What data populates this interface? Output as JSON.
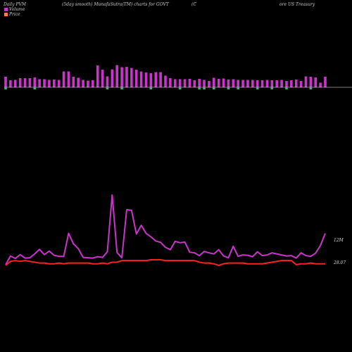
{
  "header": {
    "left": "Daily PVM",
    "mid": "(5day smooth) MunafaSutra(TM) charts for GOVT",
    "right_a": "(C",
    "right_b": "ore  US Treasury"
  },
  "legend": {
    "volume_label": "Volume",
    "price_label": "Price"
  },
  "colors": {
    "background": "#000000",
    "volume_bar": "#cc33cc",
    "volume_line": "#cc33cc",
    "price_line": "#ff2020",
    "baseline": "#ffffff",
    "down_marker": "#3cb371"
  },
  "chart_data": {
    "type": "line",
    "series": [
      {
        "name": "Volume",
        "values": [
          3.0,
          5.5,
          4.8,
          5.9,
          4.9,
          5.0,
          6.1,
          7.4,
          5.9,
          6.9,
          5.7,
          5.4,
          5.4,
          12.0,
          9.0,
          7.6,
          5.1,
          5.0,
          4.9,
          5.3,
          5.1,
          6.7,
          23.0,
          6.5,
          5.0,
          18.8,
          18.6,
          11.8,
          14.3,
          12.0,
          11.0,
          9.8,
          9.4,
          8.0,
          7.3,
          9.7,
          9.3,
          9.5,
          6.6,
          6.4,
          5.6,
          6.8,
          6.4,
          6.1,
          7.3,
          5.5,
          5.0,
          8.3,
          5.4,
          5.8,
          5.7,
          5.3,
          6.7,
          5.6,
          5.8,
          6.4,
          6.1,
          5.8,
          5.5,
          5.6,
          4.9,
          6.4,
          5.6,
          5.4,
          6.3,
          8.5,
          12.0
        ]
      },
      {
        "name": "Price",
        "values": [
          28.05,
          28.1,
          28.11,
          28.1,
          28.11,
          28.1,
          28.09,
          28.08,
          28.08,
          28.07,
          28.07,
          28.08,
          28.07,
          28.08,
          28.08,
          28.08,
          28.08,
          28.08,
          28.07,
          28.07,
          28.08,
          28.07,
          28.09,
          28.09,
          28.11,
          28.11,
          28.11,
          28.11,
          28.11,
          28.11,
          28.12,
          28.12,
          28.12,
          28.11,
          28.11,
          28.11,
          28.11,
          28.11,
          28.11,
          28.11,
          28.09,
          28.08,
          28.08,
          28.07,
          28.05,
          28.07,
          28.08,
          28.08,
          28.08,
          28.08,
          28.07,
          28.07,
          28.07,
          28.07,
          28.08,
          28.09,
          28.1,
          28.11,
          28.11,
          28.11,
          28.06,
          28.07,
          28.07,
          28.08,
          28.07,
          28.07,
          28.07
        ]
      }
    ],
    "bars": {
      "up": [
        1,
        1,
        1,
        1,
        1,
        1,
        1,
        1,
        1,
        1,
        1,
        1,
        1,
        1,
        1,
        1,
        1,
        1,
        1,
        1,
        1,
        1,
        1,
        1,
        1,
        1,
        1,
        1,
        1,
        1,
        1,
        1,
        1,
        1,
        1,
        1,
        1,
        1,
        1,
        1,
        1,
        1,
        1,
        1,
        1,
        1,
        1,
        1,
        1,
        1,
        1,
        1,
        1,
        1,
        1,
        1,
        1,
        1,
        1,
        1,
        1,
        1,
        1,
        1,
        1,
        1,
        1
      ],
      "values": [
        3.0,
        2.0,
        2.1,
        2.6,
        2.6,
        2.6,
        2.8,
        2.3,
        2.3,
        2.1,
        2.2,
        2.1,
        4.5,
        4.5,
        3.0,
        2.7,
        2.1,
        1.9,
        2.0,
        6.2,
        5.0,
        3.1,
        5.1,
        6.3,
        5.7,
        5.8,
        5.5,
        5.0,
        4.5,
        4.2,
        4.0,
        4.3,
        4.3,
        3.3,
        2.6,
        2.3,
        2.3,
        2.3,
        2.4,
        2.0,
        2.4,
        2.1,
        1.8,
        2.7,
        2.4,
        2.5,
        2.2,
        2.3,
        2.1,
        2.1,
        2.1,
        2.1,
        2.0,
        2.0,
        2.1,
        2.0,
        2.0,
        2.1,
        1.8,
        2.0,
        2.2,
        1.8,
        3.1,
        3.0,
        2.8,
        1.3,
        3.0
      ],
      "down_markers": [
        0,
        6,
        21,
        24,
        30,
        36,
        40,
        41,
        43,
        46,
        48,
        52,
        55,
        58,
        63
      ]
    },
    "right_labels": {
      "volume": "12M",
      "price": "28.07"
    },
    "title": "(5day smooth) MunafaSutra(TM) charts for GOVT",
    "grid": false,
    "legend_position": "top-left"
  }
}
